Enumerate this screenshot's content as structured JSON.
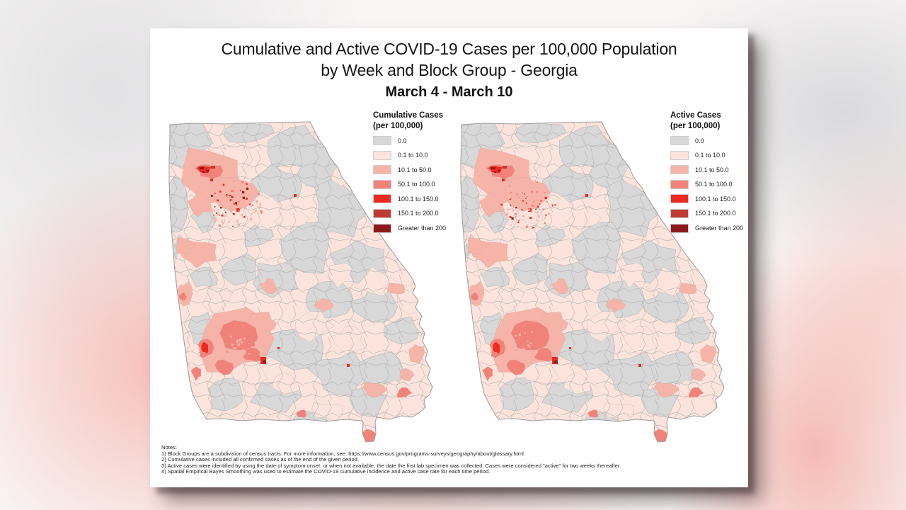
{
  "header": {
    "title_line1": "Cumulative and Active COVID-19 Cases per 100,000 Population",
    "title_line2": "by Week and Block Group - Georgia",
    "date_range": "March 4 - March 10"
  },
  "chart_data": [
    {
      "type": "choropleth",
      "map": "left",
      "title": "Cumulative Cases",
      "subtitle": "(per 100,000)",
      "region": "Georgia",
      "geography_unit": "block group",
      "value_unit": "cases per 100,000 population",
      "classes": [
        {
          "label": "0.0",
          "color": "#d8d8d8"
        },
        {
          "label": "0.1 to 10.0",
          "color": "#fce4dc"
        },
        {
          "label": "10.1 to 50.0",
          "color": "#f6b4a8"
        },
        {
          "label": "50.1 to 100.0",
          "color": "#f1827a"
        },
        {
          "label": "100.1 to 150.0",
          "color": "#ee2922"
        },
        {
          "label": "150.1 to 200.0",
          "color": "#bf3a33"
        },
        {
          "label": "Greater than 200",
          "color": "#8e191c"
        }
      ],
      "pattern_notes": "Largest high-rate cluster in the northwest metro region with small Greater-than-200 block groups at its core and a speckled fan of elevated block groups to its southeast; secondary 50.1-100.0 cluster in the southwest-central region with one 100.1-150.0 core; most rural block groups are 0.0 (gray) or 0.1 to 10.0 (pale pink)."
    },
    {
      "type": "choropleth",
      "map": "right",
      "title": "Active Cases",
      "subtitle": "(per 100,000)",
      "region": "Georgia",
      "geography_unit": "block group",
      "value_unit": "cases per 100,000 population",
      "classes": [
        {
          "label": "0.0",
          "color": "#d8d8d8"
        },
        {
          "label": "0.1 to 10.0",
          "color": "#fce4dc"
        },
        {
          "label": "10.1 to 50.0",
          "color": "#f6b4a8"
        },
        {
          "label": "50.1 to 100.0",
          "color": "#f1827a"
        },
        {
          "label": "100.1 to 150.0",
          "color": "#ee2922"
        },
        {
          "label": "150.1 to 200.0",
          "color": "#bf3a33"
        },
        {
          "label": "Greater than 200",
          "color": "#8e191c"
        }
      ],
      "pattern_notes": "Distribution nearly identical to the cumulative map for this week: northwest metro hotspot, southwest-central secondary cluster, scattered elevated block groups elsewhere."
    }
  ],
  "notes": {
    "lines": [
      "Notes:",
      "1) Block Groups are a subdivision of census tracts. For more information, see: https://www.census.gov/programs-surveys/geography/about/glossary.html.",
      "2) Cumulative cases included all confirmed cases as of the end of the given period.",
      "3) Active cases were identified by using the date of symptom onset, or when not available, the date the first lab specimen was collected. Cases were considered \"active\" for two weeks thereafter.",
      "4) Spatial Empirical Bayes Smoothing was used to estimate the COVID-19 cumulative incidence and active case rate for each time period."
    ]
  },
  "colors": {
    "poster_background": "#ffffff",
    "state_outline": "#9b9b9b",
    "county_line": "#b0b0b0",
    "backdrop_red_glow": "#f69488",
    "backdrop_gray_glow": "#d1d1d5"
  }
}
